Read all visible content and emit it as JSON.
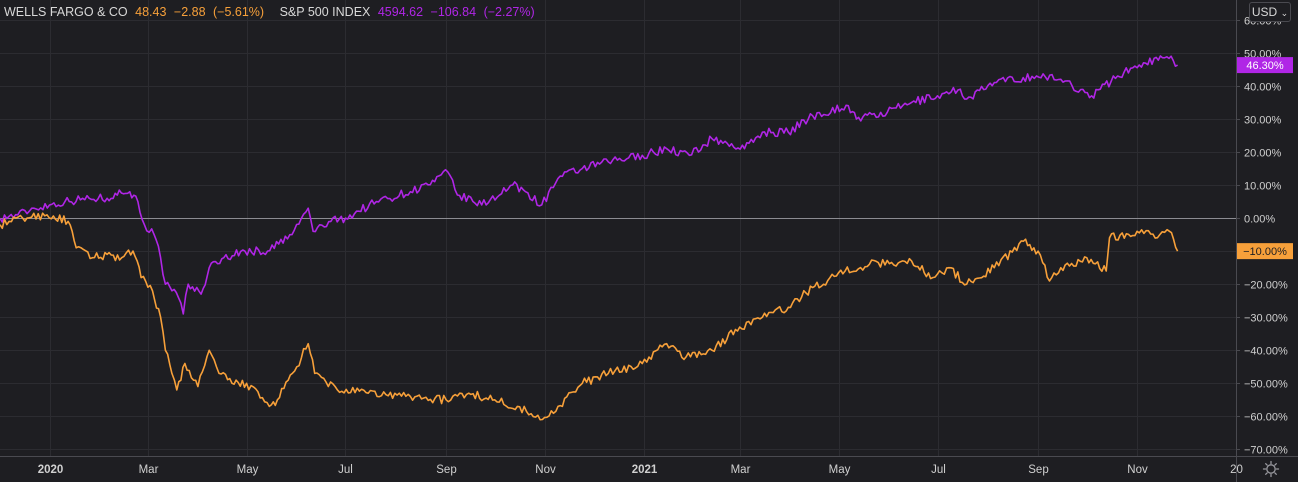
{
  "legend": [
    {
      "name": "WELLS FARGO & CO",
      "price": "48.43",
      "change": "−2.88",
      "pct": "(−5.61%)",
      "color": "#f7a03a"
    },
    {
      "name": "S&P 500 INDEX",
      "price": "4594.62",
      "change": "−106.84",
      "pct": "(−2.27%)",
      "color": "#b026e6"
    }
  ],
  "currency_button": "USD",
  "settings_icon": "gear-icon",
  "chart_data": {
    "type": "line",
    "ylim": [
      -72,
      66
    ],
    "y_ticks": [
      60,
      50,
      40,
      30,
      20,
      10,
      0,
      -10,
      -20,
      -30,
      -40,
      -50,
      -60,
      -70
    ],
    "y_tick_labels": [
      "60.00%",
      "50.00%",
      "40.00%",
      "30.00%",
      "20.00%",
      "10.00%",
      "0.00%",
      "−10.00%",
      "−20.00%",
      "−30.00%",
      "−40.00%",
      "−50.00%",
      "−60.00%",
      "−70.00%"
    ],
    "x_ticks": [
      {
        "date": "2020-01-01",
        "label": "2020",
        "bold": true
      },
      {
        "date": "2020-03-01",
        "label": "Mar"
      },
      {
        "date": "2020-05-01",
        "label": "May"
      },
      {
        "date": "2020-07-01",
        "label": "Jul"
      },
      {
        "date": "2020-09-01",
        "label": "Sep"
      },
      {
        "date": "2020-11-01",
        "label": "Nov"
      },
      {
        "date": "2021-01-01",
        "label": "2021",
        "bold": true
      },
      {
        "date": "2021-03-01",
        "label": "Mar"
      },
      {
        "date": "2021-05-01",
        "label": "May"
      },
      {
        "date": "2021-07-01",
        "label": "Jul"
      },
      {
        "date": "2021-09-01",
        "label": "Sep"
      },
      {
        "date": "2021-11-01",
        "label": "Nov"
      },
      {
        "date": "2022-01-01",
        "label": "20"
      }
    ],
    "xlim": [
      "2019-12-01",
      "2022-01-01"
    ],
    "grid": true,
    "series": [
      {
        "name": "S&P 500 INDEX",
        "color": "#b026e6",
        "last_label": "46.30%",
        "points": [
          [
            "2019-12-01",
            0
          ],
          [
            "2019-12-12",
            1
          ],
          [
            "2019-12-22",
            3
          ],
          [
            "2020-01-10",
            5
          ],
          [
            "2020-01-25",
            6
          ],
          [
            "2020-02-05",
            6
          ],
          [
            "2020-02-10",
            7.5
          ],
          [
            "2020-02-19",
            8
          ],
          [
            "2020-02-24",
            5
          ],
          [
            "2020-02-28",
            -2
          ],
          [
            "2020-03-05",
            -5
          ],
          [
            "2020-03-09",
            -12
          ],
          [
            "2020-03-12",
            -20
          ],
          [
            "2020-03-16",
            -22
          ],
          [
            "2020-03-20",
            -24
          ],
          [
            "2020-03-23",
            -29
          ],
          [
            "2020-03-26",
            -20
          ],
          [
            "2020-04-03",
            -23
          ],
          [
            "2020-04-08",
            -15
          ],
          [
            "2020-04-17",
            -12
          ],
          [
            "2020-04-30",
            -10
          ],
          [
            "2020-05-14",
            -10
          ],
          [
            "2020-05-29",
            -5
          ],
          [
            "2020-06-08",
            3
          ],
          [
            "2020-06-11",
            -4
          ],
          [
            "2020-06-22",
            -1
          ],
          [
            "2020-07-01",
            0
          ],
          [
            "2020-07-20",
            5
          ],
          [
            "2020-08-10",
            8
          ],
          [
            "2020-08-25",
            11
          ],
          [
            "2020-09-02",
            14
          ],
          [
            "2020-09-08",
            7
          ],
          [
            "2020-09-23",
            4
          ],
          [
            "2020-10-12",
            10
          ],
          [
            "2020-10-20",
            8
          ],
          [
            "2020-10-30",
            4
          ],
          [
            "2020-11-09",
            12
          ],
          [
            "2020-11-24",
            15
          ],
          [
            "2020-12-10",
            17
          ],
          [
            "2020-12-31",
            19
          ],
          [
            "2021-01-15",
            21
          ],
          [
            "2021-01-29",
            19
          ],
          [
            "2021-02-12",
            24
          ],
          [
            "2021-03-04",
            21
          ],
          [
            "2021-03-15",
            26
          ],
          [
            "2021-03-31",
            26
          ],
          [
            "2021-04-15",
            31
          ],
          [
            "2021-05-07",
            34
          ],
          [
            "2021-05-12",
            30
          ],
          [
            "2021-05-31",
            32
          ],
          [
            "2021-06-15",
            35
          ],
          [
            "2021-07-01",
            37
          ],
          [
            "2021-07-15",
            39
          ],
          [
            "2021-07-19",
            36
          ],
          [
            "2021-08-05",
            41
          ],
          [
            "2021-08-31",
            43
          ],
          [
            "2021-09-15",
            42
          ],
          [
            "2021-09-30",
            38
          ],
          [
            "2021-10-04",
            37
          ],
          [
            "2021-10-20",
            43
          ],
          [
            "2021-11-05",
            47
          ],
          [
            "2021-11-18",
            48.5
          ],
          [
            "2021-11-22",
            49
          ],
          [
            "2021-11-26",
            46.3
          ]
        ]
      },
      {
        "name": "WELLS FARGO & CO",
        "color": "#f7a03a",
        "last_label": "−10.00%",
        "points": [
          [
            "2019-12-01",
            -2
          ],
          [
            "2019-12-15",
            0
          ],
          [
            "2019-12-30",
            1
          ],
          [
            "2020-01-12",
            -1
          ],
          [
            "2020-01-17",
            -9
          ],
          [
            "2020-01-27",
            -12
          ],
          [
            "2020-02-05",
            -11
          ],
          [
            "2020-02-14",
            -12
          ],
          [
            "2020-02-21",
            -10
          ],
          [
            "2020-02-26",
            -18
          ],
          [
            "2020-03-04",
            -22
          ],
          [
            "2020-03-09",
            -30
          ],
          [
            "2020-03-12",
            -40
          ],
          [
            "2020-03-16",
            -47
          ],
          [
            "2020-03-19",
            -52
          ],
          [
            "2020-03-24",
            -44
          ],
          [
            "2020-04-01",
            -51
          ],
          [
            "2020-04-08",
            -40
          ],
          [
            "2020-04-14",
            -47
          ],
          [
            "2020-04-22",
            -50
          ],
          [
            "2020-05-01",
            -50
          ],
          [
            "2020-05-15",
            -57
          ],
          [
            "2020-05-20",
            -55
          ],
          [
            "2020-06-01",
            -45
          ],
          [
            "2020-06-08",
            -38
          ],
          [
            "2020-06-12",
            -47
          ],
          [
            "2020-06-26",
            -52
          ],
          [
            "2020-07-15",
            -53
          ],
          [
            "2020-08-10",
            -54
          ],
          [
            "2020-09-01",
            -55
          ],
          [
            "2020-09-15",
            -53
          ],
          [
            "2020-10-01",
            -55
          ],
          [
            "2020-10-15",
            -57
          ],
          [
            "2020-10-29",
            -61
          ],
          [
            "2020-11-09",
            -57
          ],
          [
            "2020-11-24",
            -50
          ],
          [
            "2020-12-10",
            -47
          ],
          [
            "2020-12-31",
            -44
          ],
          [
            "2021-01-15",
            -38
          ],
          [
            "2021-01-27",
            -42
          ],
          [
            "2021-02-12",
            -40
          ],
          [
            "2021-03-01",
            -33
          ],
          [
            "2021-03-15",
            -30
          ],
          [
            "2021-03-31",
            -27
          ],
          [
            "2021-04-15",
            -21
          ],
          [
            "2021-05-05",
            -16
          ],
          [
            "2021-05-20",
            -14
          ],
          [
            "2021-06-15",
            -13
          ],
          [
            "2021-06-28",
            -18
          ],
          [
            "2021-07-08",
            -15
          ],
          [
            "2021-07-19",
            -20
          ],
          [
            "2021-08-05",
            -15
          ],
          [
            "2021-08-23",
            -7
          ],
          [
            "2021-09-01",
            -10
          ],
          [
            "2021-09-08",
            -19
          ],
          [
            "2021-09-15",
            -15
          ],
          [
            "2021-10-01",
            -12
          ],
          [
            "2021-10-13",
            -16
          ],
          [
            "2021-10-15",
            -6
          ],
          [
            "2021-11-01",
            -4
          ],
          [
            "2021-11-15",
            -5
          ],
          [
            "2021-11-21",
            -4
          ],
          [
            "2021-11-26",
            -10
          ]
        ]
      }
    ]
  }
}
